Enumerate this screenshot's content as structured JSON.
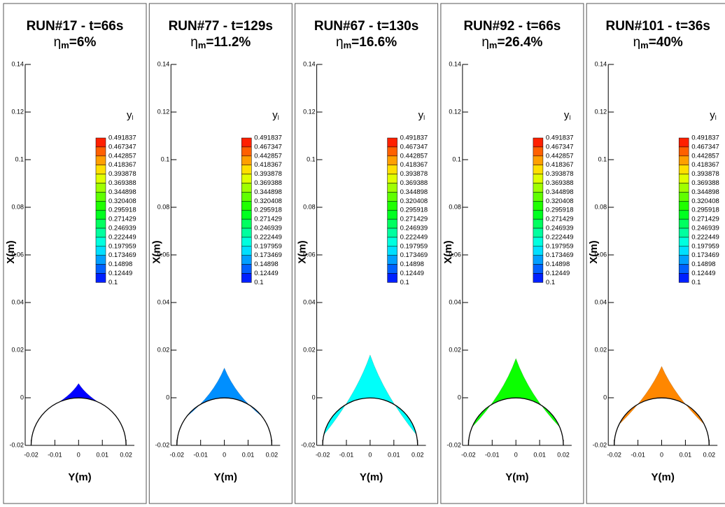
{
  "chart_data": [
    {
      "type": "contour",
      "title": "RUN#17 - t=66s",
      "subtitle": {
        "symbol": "η",
        "subscript": "m",
        "text": "=6%"
      },
      "xlabel": "Y(m)",
      "ylabel": "X(m)",
      "xlim": [
        -0.0225,
        0.0235
      ],
      "ylim": [
        -0.02,
        0.14
      ],
      "xticks": [
        -0.02,
        -0.01,
        0,
        0.01,
        0.02
      ],
      "yticks": [
        -0.02,
        0,
        0.02,
        0.04,
        0.06,
        0.08,
        0.1,
        0.12,
        0.14
      ],
      "legend_title": {
        "symbol": "y",
        "subscript": "l"
      },
      "levels": [
        0.491837,
        0.467347,
        0.442857,
        0.418367,
        0.393878,
        0.369388,
        0.344898,
        0.320408,
        0.295918,
        0.271429,
        0.246939,
        0.222449,
        0.197959,
        0.173469,
        0.14898,
        0.12449,
        0.1
      ],
      "colormap": [
        "#0000ff",
        "#00ffff",
        "#00ff00",
        "#ffff00",
        "#ff0000"
      ],
      "body": {
        "center": [
          0,
          -0.02
        ],
        "radius": 0.02
      },
      "peak": 0.006,
      "half_width": 0.012,
      "level": 0.1
    },
    {
      "type": "contour",
      "title": "RUN#77 - t=129s",
      "subtitle": {
        "symbol": "η",
        "subscript": "m",
        "text": "=11.2%"
      },
      "xlabel": "Y(m)",
      "ylabel": "X(m)",
      "xlim": [
        -0.0225,
        0.0235
      ],
      "ylim": [
        -0.02,
        0.14
      ],
      "xticks": [
        -0.02,
        -0.01,
        0,
        0.01,
        0.02
      ],
      "yticks": [
        -0.02,
        0,
        0.02,
        0.04,
        0.06,
        0.08,
        0.1,
        0.12,
        0.14
      ],
      "legend_title": {
        "symbol": "y",
        "subscript": "l"
      },
      "levels": [
        0.491837,
        0.467347,
        0.442857,
        0.418367,
        0.393878,
        0.369388,
        0.344898,
        0.320408,
        0.295918,
        0.271429,
        0.246939,
        0.222449,
        0.197959,
        0.173469,
        0.14898,
        0.12449,
        0.1
      ],
      "colormap": [
        "#0000ff",
        "#00ffff",
        "#00ff00",
        "#ffff00",
        "#ff0000"
      ],
      "body": {
        "center": [
          0,
          -0.02
        ],
        "radius": 0.02
      },
      "peak": 0.0125,
      "half_width": 0.016,
      "level": 0.155
    },
    {
      "type": "contour",
      "title": "RUN#67 - t=130s",
      "subtitle": {
        "symbol": "η",
        "subscript": "m",
        "text": "=16.6%"
      },
      "xlabel": "Y(m)",
      "ylabel": "X(m)",
      "xlim": [
        -0.0225,
        0.0235
      ],
      "ylim": [
        -0.02,
        0.14
      ],
      "xticks": [
        -0.02,
        -0.01,
        0,
        0.01,
        0.02
      ],
      "yticks": [
        -0.02,
        0,
        0.02,
        0.04,
        0.06,
        0.08,
        0.1,
        0.12,
        0.14
      ],
      "legend_title": {
        "symbol": "y",
        "subscript": "l"
      },
      "levels": [
        0.491837,
        0.467347,
        0.442857,
        0.418367,
        0.393878,
        0.369388,
        0.344898,
        0.320408,
        0.295918,
        0.271429,
        0.246939,
        0.222449,
        0.197959,
        0.173469,
        0.14898,
        0.12449,
        0.1
      ],
      "colormap": [
        "#0000ff",
        "#00ffff",
        "#00ff00",
        "#ffff00",
        "#ff0000"
      ],
      "body": {
        "center": [
          0,
          -0.02
        ],
        "radius": 0.02
      },
      "peak": 0.018,
      "half_width": 0.0195,
      "level": 0.2
    },
    {
      "type": "contour",
      "title": "RUN#92 - t=66s",
      "subtitle": {
        "symbol": "η",
        "subscript": "m",
        "text": "=26.4%"
      },
      "xlabel": "Y(m)",
      "ylabel": "X(m)",
      "xlim": [
        -0.0225,
        0.0235
      ],
      "ylim": [
        -0.02,
        0.14
      ],
      "xticks": [
        -0.02,
        -0.01,
        0,
        0.01,
        0.02
      ],
      "yticks": [
        -0.02,
        0,
        0.02,
        0.04,
        0.06,
        0.08,
        0.1,
        0.12,
        0.14
      ],
      "legend_title": {
        "symbol": "y",
        "subscript": "l"
      },
      "levels": [
        0.491837,
        0.467347,
        0.442857,
        0.418367,
        0.393878,
        0.369388,
        0.344898,
        0.320408,
        0.295918,
        0.271429,
        0.246939,
        0.222449,
        0.197959,
        0.173469,
        0.14898,
        0.12449,
        0.1
      ],
      "colormap": [
        "#0000ff",
        "#00ffff",
        "#00ff00",
        "#ffff00",
        "#ff0000"
      ],
      "body": {
        "center": [
          0,
          -0.02
        ],
        "radius": 0.02
      },
      "peak": 0.0165,
      "half_width": 0.0185,
      "level": 0.3
    },
    {
      "type": "contour",
      "title": "RUN#101 - t=36s",
      "subtitle": {
        "symbol": "η",
        "subscript": "m",
        "text": "=40%"
      },
      "xlabel": "Y(m)",
      "ylabel": "X(m)",
      "xlim": [
        -0.0225,
        0.0235
      ],
      "ylim": [
        -0.02,
        0.14
      ],
      "xticks": [
        -0.02,
        -0.01,
        0,
        0.01,
        0.02
      ],
      "yticks": [
        -0.02,
        0,
        0.02,
        0.04,
        0.06,
        0.08,
        0.1,
        0.12,
        0.14
      ],
      "legend_title": {
        "symbol": "y",
        "subscript": "l"
      },
      "levels": [
        0.491837,
        0.467347,
        0.442857,
        0.418367,
        0.393878,
        0.369388,
        0.344898,
        0.320408,
        0.295918,
        0.271429,
        0.246939,
        0.222449,
        0.197959,
        0.173469,
        0.14898,
        0.12449,
        0.1
      ],
      "colormap": [
        "#0000ff",
        "#00ffff",
        "#00ff00",
        "#ffff00",
        "#ff0000"
      ],
      "body": {
        "center": [
          0,
          -0.02
        ],
        "radius": 0.02
      },
      "peak": 0.0132,
      "half_width": 0.018,
      "level": 0.44
    }
  ]
}
